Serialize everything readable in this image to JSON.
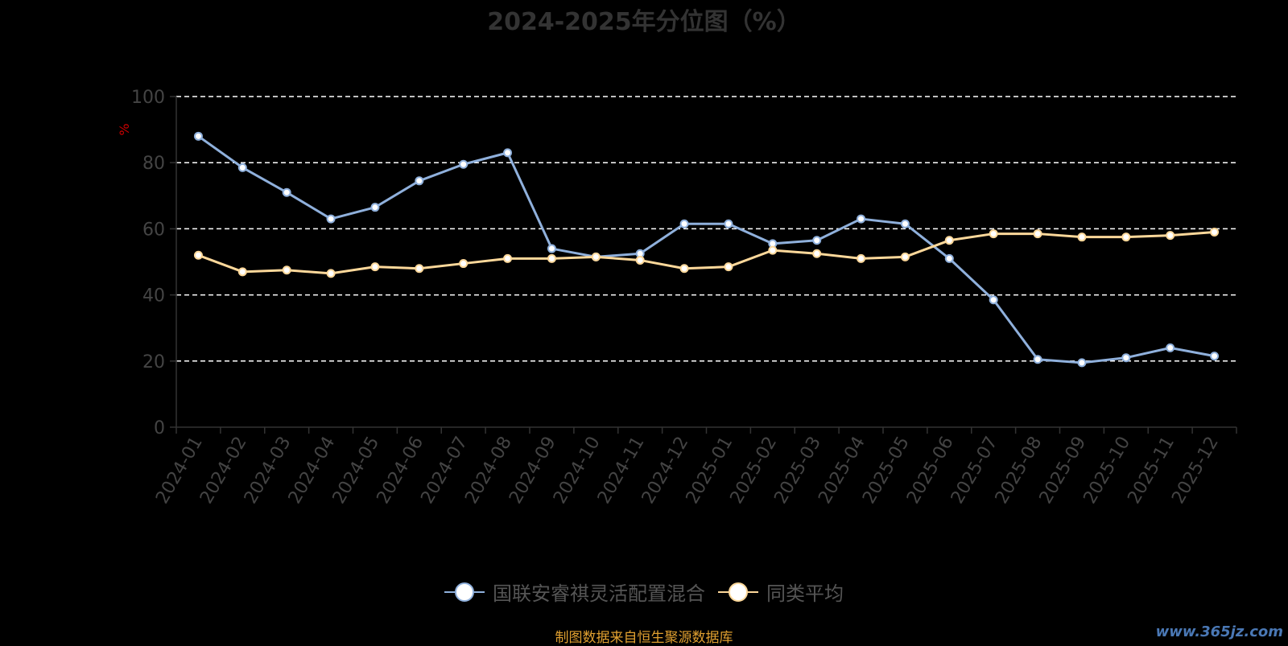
{
  "chart_data": {
    "type": "line",
    "title": "2024-2025年分位图（%）",
    "ylabel": "%",
    "xlabel": "",
    "ylim": [
      0,
      100
    ],
    "yticks": [
      0,
      20,
      40,
      60,
      80,
      100
    ],
    "grid": true,
    "legend_position": "bottom",
    "categories": [
      "2024-01",
      "2024-02",
      "2024-03",
      "2024-04",
      "2024-05",
      "2024-06",
      "2024-07",
      "2024-08",
      "2024-09",
      "2024-10",
      "2024-11",
      "2024-12",
      "2025-01",
      "2025-02",
      "2025-03",
      "2025-04",
      "2025-05",
      "2025-06",
      "2025-07",
      "2025-08",
      "2025-09",
      "2025-10",
      "2025-11",
      "2025-12"
    ],
    "series": [
      {
        "name": "国联安睿祺灵活配置混合",
        "color": "#8fb0dc",
        "values": [
          88,
          78.5,
          71,
          63,
          66.5,
          74.5,
          79.5,
          83,
          54,
          51.5,
          52.5,
          61.5,
          61.5,
          55.5,
          56.5,
          63,
          61.5,
          51,
          38.5,
          20.5,
          19.5,
          21,
          24,
          21.5
        ]
      },
      {
        "name": "同类平均",
        "color": "#fdd89a",
        "values": [
          52,
          47,
          47.5,
          46.5,
          48.5,
          48,
          49.5,
          51,
          51,
          51.5,
          50.5,
          48,
          48.5,
          53.5,
          52.5,
          51,
          51.5,
          56.5,
          58.5,
          58.5,
          57.5,
          57.5,
          58,
          59
        ]
      }
    ]
  },
  "source_note": "制图数据来自恒生聚源数据库",
  "watermark": "www.365jz.com"
}
